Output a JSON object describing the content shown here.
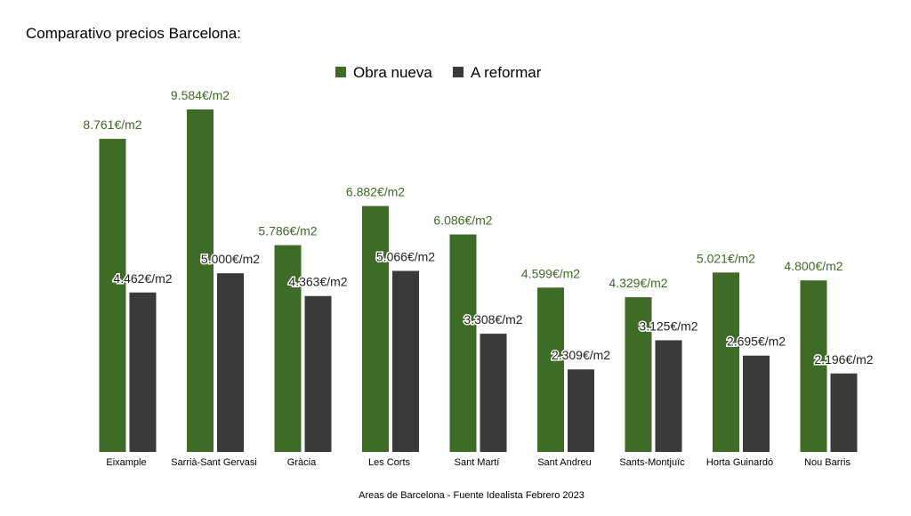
{
  "colors": {
    "obra_nueva": "#3e6b26",
    "a_reformar": "#3a3a3a",
    "label_green": "#3e6b26",
    "label_dark": "#222222"
  },
  "chart_data": {
    "type": "bar",
    "title": "Comparativo precios Barcelona:",
    "xlabel": "Areas de Barcelona - Fuente Idealista Febrero 2023",
    "ylabel": "",
    "ylim": [
      0,
      10000
    ],
    "grid": false,
    "legend_position": "top-center",
    "categories": [
      "Eixample",
      "Sarrià-Sant Gervasi",
      "Gràcia",
      "Les Corts",
      "Sant Martí",
      "Sant Andreu",
      "Sants-Montjuïc",
      "Horta Guinardó",
      "Nou Barris"
    ],
    "series": [
      {
        "name": "Obra nueva",
        "values": [
          8761,
          9584,
          5786,
          6882,
          6086,
          4599,
          4329,
          5021,
          4800
        ],
        "labels": [
          "8.761€/m2",
          "9.584€/m2",
          "5.786€/m2",
          "6.882€/m2",
          "6.086€/m2",
          "4.599€/m2",
          "4.329€/m2",
          "5.021€/m2",
          "4.800€/m2"
        ]
      },
      {
        "name": "A reformar",
        "values": [
          4462,
          5000,
          4363,
          5066,
          3308,
          2309,
          3125,
          2695,
          2196
        ],
        "labels": [
          "4.462€/m2",
          "5.000€/m2",
          "4.363€/m2",
          "5.066€/m2",
          "3.308€/m2",
          "2.309€/m2",
          "3.125€/m2",
          "2.695€/m2",
          "2.196€/m2"
        ]
      }
    ]
  }
}
